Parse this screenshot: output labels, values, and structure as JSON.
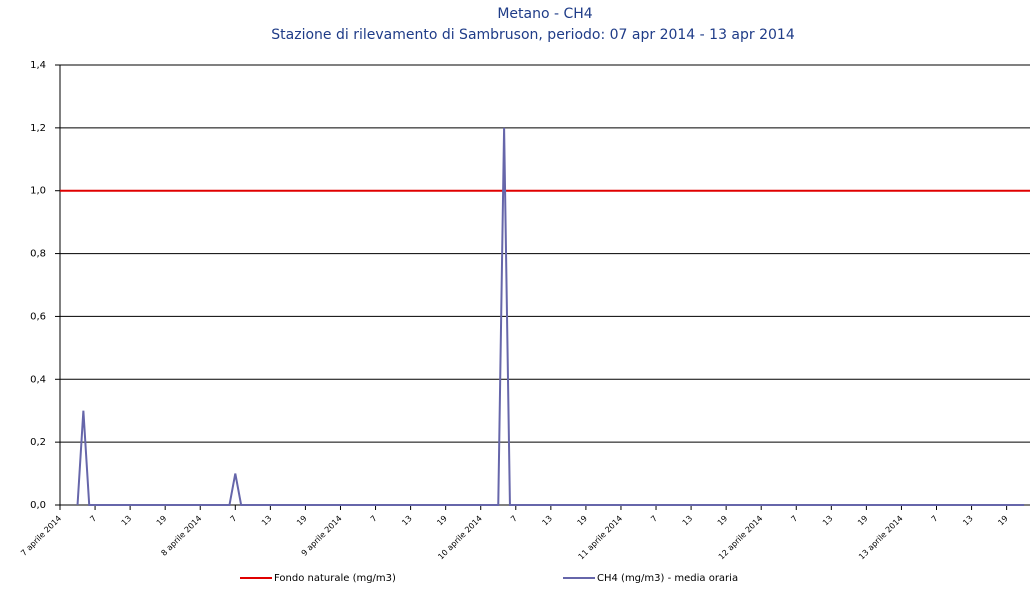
{
  "chart_data": {
    "type": "line",
    "title": "Metano - CH4",
    "subtitle": "Stazione di rilevamento di Sambruson, periodo: 07 apr 2014 - 13 apr 2014",
    "categories": [
      "7 aprile 2014",
      null,
      null,
      null,
      null,
      null,
      "7",
      null,
      null,
      null,
      null,
      null,
      "13",
      null,
      null,
      null,
      null,
      null,
      "19",
      null,
      null,
      null,
      null,
      null,
      "8 aprile 2014",
      null,
      null,
      null,
      null,
      null,
      "7",
      null,
      null,
      null,
      null,
      null,
      "13",
      null,
      null,
      null,
      null,
      null,
      "19",
      null,
      null,
      null,
      null,
      null,
      "9 aprile 2014",
      null,
      null,
      null,
      null,
      null,
      "7",
      null,
      null,
      null,
      null,
      null,
      "13",
      null,
      null,
      null,
      null,
      null,
      "19",
      null,
      null,
      null,
      null,
      null,
      "10 aprile 2014",
      null,
      null,
      null,
      null,
      null,
      "7",
      null,
      null,
      null,
      null,
      null,
      "13",
      null,
      null,
      null,
      null,
      null,
      "19",
      null,
      null,
      null,
      null,
      null,
      "11 aprile 2014",
      null,
      null,
      null,
      null,
      null,
      "7",
      null,
      null,
      null,
      null,
      null,
      "13",
      null,
      null,
      null,
      null,
      null,
      "19",
      null,
      null,
      null,
      null,
      null,
      "12 aprile 2014",
      null,
      null,
      null,
      null,
      null,
      "7",
      null,
      null,
      null,
      null,
      null,
      "13",
      null,
      null,
      null,
      null,
      null,
      "19",
      null,
      null,
      null,
      null,
      null,
      "13 aprile 2014",
      null,
      null,
      null,
      null,
      null,
      "7",
      null,
      null,
      null,
      null,
      null,
      "13",
      null,
      null,
      null,
      null,
      null,
      "19",
      null,
      null,
      null
    ],
    "series": [
      {
        "name": "CH4 (mg/m3)  - media oraria",
        "color": "#6666aa",
        "values": [
          null,
          null,
          null,
          0,
          0.3,
          0,
          0,
          0,
          0,
          0,
          0,
          0,
          0,
          0,
          0,
          0,
          0,
          0,
          0,
          0,
          0,
          0,
          0,
          0,
          0,
          0,
          0,
          0,
          0,
          0,
          0.1,
          0,
          0,
          0,
          0,
          0,
          0,
          0,
          0,
          0,
          0,
          0,
          0,
          0,
          0,
          0,
          0,
          0,
          0,
          0,
          0,
          0,
          0,
          0,
          0,
          0,
          0,
          0,
          0,
          0,
          0,
          0,
          0,
          0,
          0,
          0,
          0,
          0,
          0,
          0,
          0,
          0,
          0,
          0,
          0,
          0,
          1.2,
          0,
          0,
          0,
          0,
          0,
          0,
          0,
          0,
          0,
          0,
          0,
          0,
          0,
          0,
          0,
          0,
          0,
          0,
          0,
          0,
          0,
          0,
          0,
          0,
          0,
          0,
          0,
          0,
          0,
          0,
          0,
          0,
          0,
          0,
          0,
          0,
          0,
          0,
          0,
          0,
          0,
          0,
          0,
          0,
          0,
          0,
          0,
          0,
          0,
          0,
          0,
          0,
          0,
          0,
          0,
          0,
          0,
          0,
          0,
          0,
          0,
          0,
          0,
          0,
          0,
          0,
          0,
          0,
          0,
          0,
          0,
          0,
          0,
          0,
          0,
          0,
          0,
          0,
          0,
          0,
          0,
          0,
          0,
          0,
          0,
          0,
          0,
          0,
          0
        ]
      }
    ],
    "reference_line": {
      "name": "Fondo naturale  (mg/m3)",
      "value": 1,
      "color": "#e00000"
    },
    "ylim": [
      0,
      1.4
    ],
    "yticks": [
      {
        "value": 0,
        "label": "0,0"
      },
      {
        "value": 0.2,
        "label": "0,2"
      },
      {
        "value": 0.4,
        "label": "0,4"
      },
      {
        "value": 0.6,
        "label": "0,6"
      },
      {
        "value": 0.8,
        "label": "0,8"
      },
      {
        "value": 1,
        "label": "1,0"
      },
      {
        "value": 1.2,
        "label": "1,2"
      },
      {
        "value": 1.4,
        "label": "1,4"
      }
    ],
    "grid": true
  }
}
